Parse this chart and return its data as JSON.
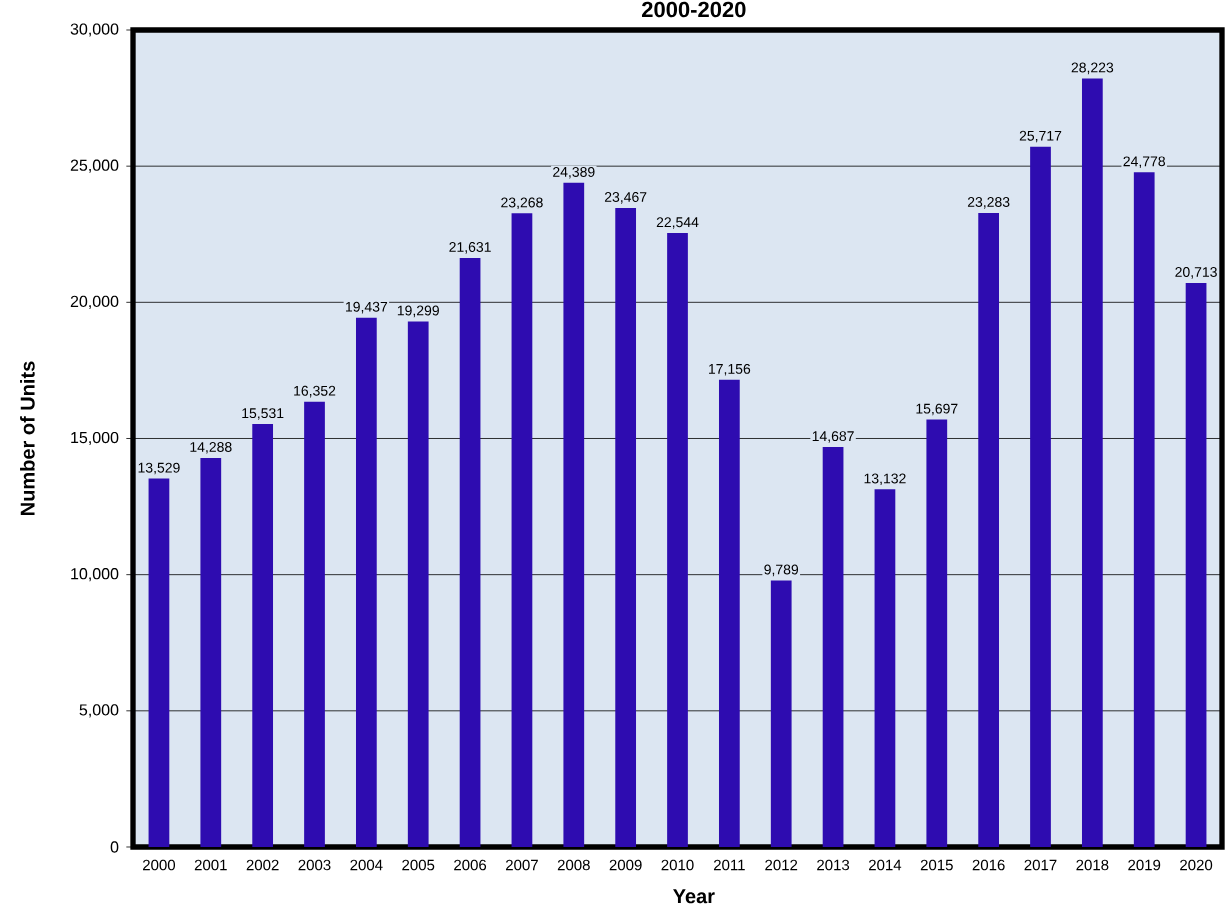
{
  "chart_data": {
    "type": "bar",
    "title": "2000-2020",
    "xlabel": "Year",
    "ylabel": "Number of Units",
    "categories": [
      "2000",
      "2001",
      "2002",
      "2003",
      "2004",
      "2005",
      "2006",
      "2007",
      "2008",
      "2009",
      "2010",
      "2011",
      "2012",
      "2013",
      "2014",
      "2015",
      "2016",
      "2017",
      "2018",
      "2019",
      "2020"
    ],
    "values": [
      13529,
      14288,
      15531,
      16352,
      19437,
      19299,
      21631,
      23268,
      24389,
      23467,
      22544,
      17156,
      9789,
      14687,
      13132,
      15697,
      23283,
      25717,
      28223,
      24778,
      20713
    ],
    "value_labels": [
      "13,529",
      "14,288",
      "15,531",
      "16,352",
      "19,437",
      "19,299",
      "21,631",
      "23,268",
      "24,389",
      "23,467",
      "22,544",
      "17,156",
      "9,789",
      "14,687",
      "13,132",
      "15,697",
      "23,283",
      "25,717",
      "28,223",
      "24,778",
      "20,713"
    ],
    "color": "#2e0cb0",
    "ylim": [
      0,
      30000
    ],
    "yticks": [
      0,
      {
        "value": 5000,
        "label": "5,000"
      },
      {
        "value": 10000,
        "label": "10,000"
      },
      {
        "value": 15000,
        "label": "15,000"
      },
      {
        "value": 20000,
        "label": "20,000"
      },
      {
        "value": 25000,
        "label": "25,000"
      },
      {
        "value": 30000,
        "label": "30,000"
      }
    ],
    "grid": "y"
  }
}
